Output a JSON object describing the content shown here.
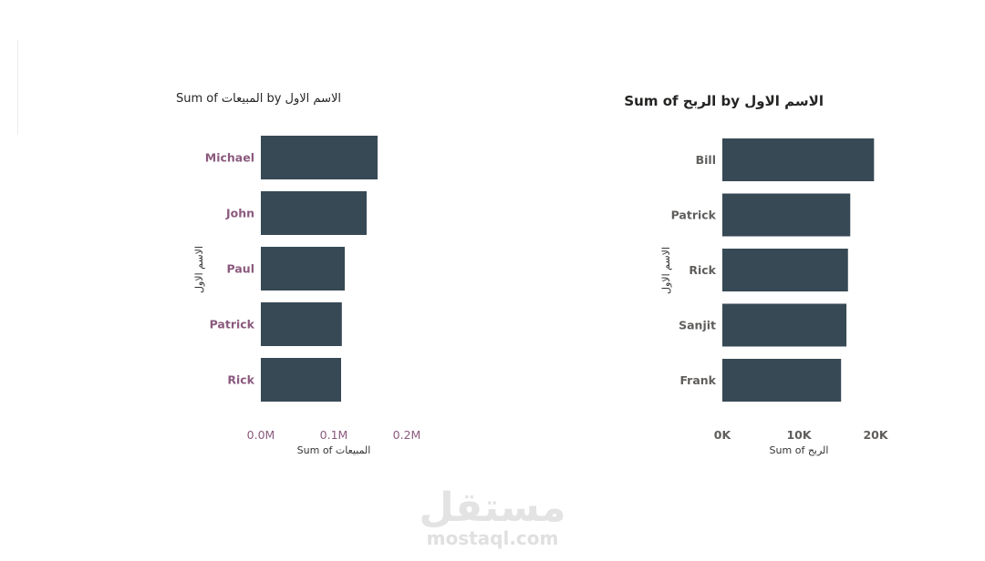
{
  "chart_data": [
    {
      "type": "bar",
      "orientation": "horizontal",
      "title": "Sum of المبيعات by الاسم الاول",
      "xlabel": "Sum of المبيعات",
      "ylabel": "الاسم الاول",
      "categories": [
        "Michael",
        "John",
        "Paul",
        "Patrick",
        "Rick"
      ],
      "values": [
        160000,
        145000,
        115000,
        111000,
        110000
      ],
      "xlim": [
        0,
        200000
      ],
      "xticks": [
        "0.0M",
        "0.1M",
        "0.2M"
      ],
      "grid": false,
      "legend": "none",
      "colors": {
        "bar": "#374955",
        "category_label": "#8b5a7e",
        "tick_label": "#8b5a7e",
        "title": "#252423",
        "axis_title": "#333333"
      }
    },
    {
      "type": "bar",
      "orientation": "horizontal",
      "title": "Sum of الربح by الاسم الاول",
      "xlabel": "Sum of الربح",
      "ylabel": "الاسم الاول",
      "categories": [
        "Bill",
        "Patrick",
        "Rick",
        "Sanjit",
        "Frank"
      ],
      "values": [
        19800,
        16700,
        16400,
        16200,
        15500
      ],
      "xlim": [
        0,
        20000
      ],
      "xticks": [
        "0K",
        "10K",
        "20K"
      ],
      "grid": false,
      "legend": "none",
      "colors": {
        "bar": "#374955",
        "category_label": "#605e5c",
        "tick_label": "#605e5c",
        "title": "#252423",
        "axis_title": "#333333"
      }
    }
  ],
  "watermark": {
    "logo": "مستقل",
    "url": "mostaql.com"
  }
}
